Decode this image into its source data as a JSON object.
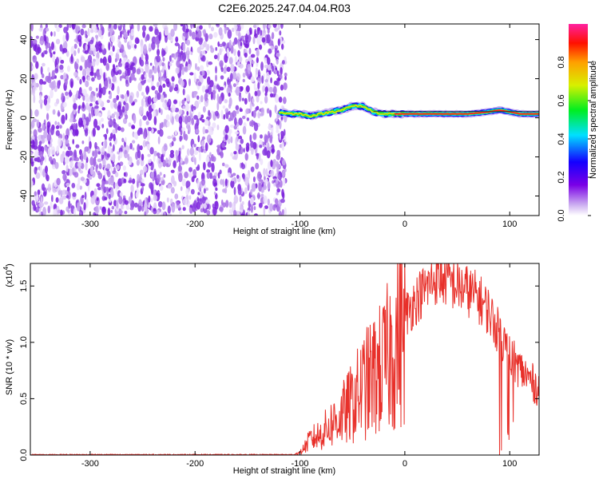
{
  "title": "C2E6.2025.247.04.04.R03",
  "chart_data": [
    {
      "type": "heatmap",
      "panel": "spectrogram",
      "xlabel": "Height of straight line (km)",
      "ylabel": "Frequency (Hz)",
      "xlim": [
        -357,
        128
      ],
      "ylim": [
        -50,
        48
      ],
      "xticks": [
        -300,
        -200,
        -100,
        0,
        100
      ],
      "yticks": [
        -40,
        -20,
        0,
        20,
        40
      ],
      "xtick_labels": [
        "-300",
        "-200",
        "-100",
        "0",
        "100"
      ],
      "ytick_labels": [
        "-40",
        "-20",
        "0",
        "20",
        "40"
      ],
      "noise_region_x": [
        -357,
        -118
      ],
      "signal_ridge": {
        "x": [
          -120,
          -110,
          -100,
          -90,
          -80,
          -70,
          -60,
          -50,
          -40,
          -30,
          -20,
          -10,
          0,
          20,
          40,
          60,
          80,
          90,
          100,
          110,
          128
        ],
        "y": [
          3,
          2,
          2,
          1,
          2,
          3,
          4,
          6,
          6,
          3,
          2,
          2,
          2,
          2,
          2,
          2,
          3,
          4,
          3,
          2,
          2
        ]
      },
      "colorbar": {
        "label": "Normalized spectral amplitude",
        "range": [
          0,
          1
        ],
        "ticks": [
          0.0,
          0.2,
          0.4,
          0.6,
          0.8
        ],
        "tick_labels": [
          "0.0",
          "0.2",
          "0.4",
          "0.6",
          "0.8"
        ]
      },
      "grid": false
    },
    {
      "type": "line",
      "panel": "snr",
      "xlabel": "Height of straight line (km)",
      "ylabel": "SNR (10 * v/v)",
      "scale_label": "(x10",
      "scale_exponent": "4",
      "xlim": [
        -357,
        128
      ],
      "ylim": [
        0,
        1.7
      ],
      "xticks": [
        -300,
        -200,
        -100,
        0,
        100
      ],
      "yticks": [
        0.0,
        0.5,
        1.0,
        1.5
      ],
      "xtick_labels": [
        "-300",
        "-200",
        "-100",
        "0",
        "100"
      ],
      "ytick_labels": [
        "0.0",
        "0.5",
        "1.0",
        "1.5"
      ],
      "color": "#e8302a",
      "series": [
        {
          "x": [
            -357,
            -300,
            -200,
            -130,
            -110,
            -100,
            -90,
            -80,
            -70,
            -60,
            -50,
            -40,
            -30,
            -20,
            -10,
            0,
            10,
            20,
            30,
            40,
            50,
            60,
            70,
            80,
            90,
            100,
            110,
            120,
            128
          ],
          "y": [
            0.0,
            0.0,
            0.0,
            0.0,
            0.0,
            0.02,
            0.15,
            0.2,
            0.3,
            0.38,
            0.5,
            0.65,
            0.75,
            0.85,
            1.05,
            1.25,
            1.4,
            1.5,
            1.6,
            1.58,
            1.52,
            1.48,
            1.42,
            1.3,
            1.1,
            0.9,
            0.78,
            0.68,
            0.6
          ]
        }
      ],
      "grid": false
    }
  ]
}
